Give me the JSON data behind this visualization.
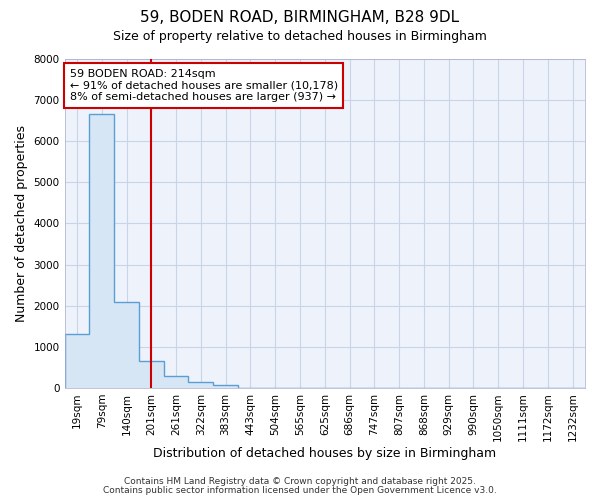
{
  "title": "59, BODEN ROAD, BIRMINGHAM, B28 9DL",
  "subtitle": "Size of property relative to detached houses in Birmingham",
  "xlabel": "Distribution of detached houses by size in Birmingham",
  "ylabel": "Number of detached properties",
  "categories": [
    "19sqm",
    "79sqm",
    "140sqm",
    "201sqm",
    "261sqm",
    "322sqm",
    "383sqm",
    "443sqm",
    "504sqm",
    "565sqm",
    "625sqm",
    "686sqm",
    "747sqm",
    "807sqm",
    "868sqm",
    "929sqm",
    "990sqm",
    "1050sqm",
    "1111sqm",
    "1172sqm",
    "1232sqm"
  ],
  "values": [
    1300,
    6650,
    2100,
    650,
    300,
    150,
    80,
    0,
    0,
    0,
    0,
    0,
    0,
    0,
    0,
    0,
    0,
    0,
    0,
    0,
    0
  ],
  "bar_color": "#d6e6f5",
  "bar_edge_color": "#5a9fd4",
  "vline_x_index": 3,
  "vline_color": "#cc0000",
  "annotation_text": "59 BODEN ROAD: 214sqm\n← 91% of detached houses are smaller (10,178)\n8% of semi-detached houses are larger (937) →",
  "annotation_box_facecolor": "#ffffff",
  "annotation_box_edgecolor": "#cc0000",
  "ylim": [
    0,
    8000
  ],
  "yticks": [
    0,
    1000,
    2000,
    3000,
    4000,
    5000,
    6000,
    7000,
    8000
  ],
  "background_color": "#ffffff",
  "plot_bg_color": "#eef2fa",
  "grid_color": "#c8d4e8",
  "title_fontsize": 11,
  "subtitle_fontsize": 9,
  "axis_label_fontsize": 9,
  "tick_fontsize": 7.5,
  "annotation_fontsize": 8,
  "footer_fontsize": 6.5
}
